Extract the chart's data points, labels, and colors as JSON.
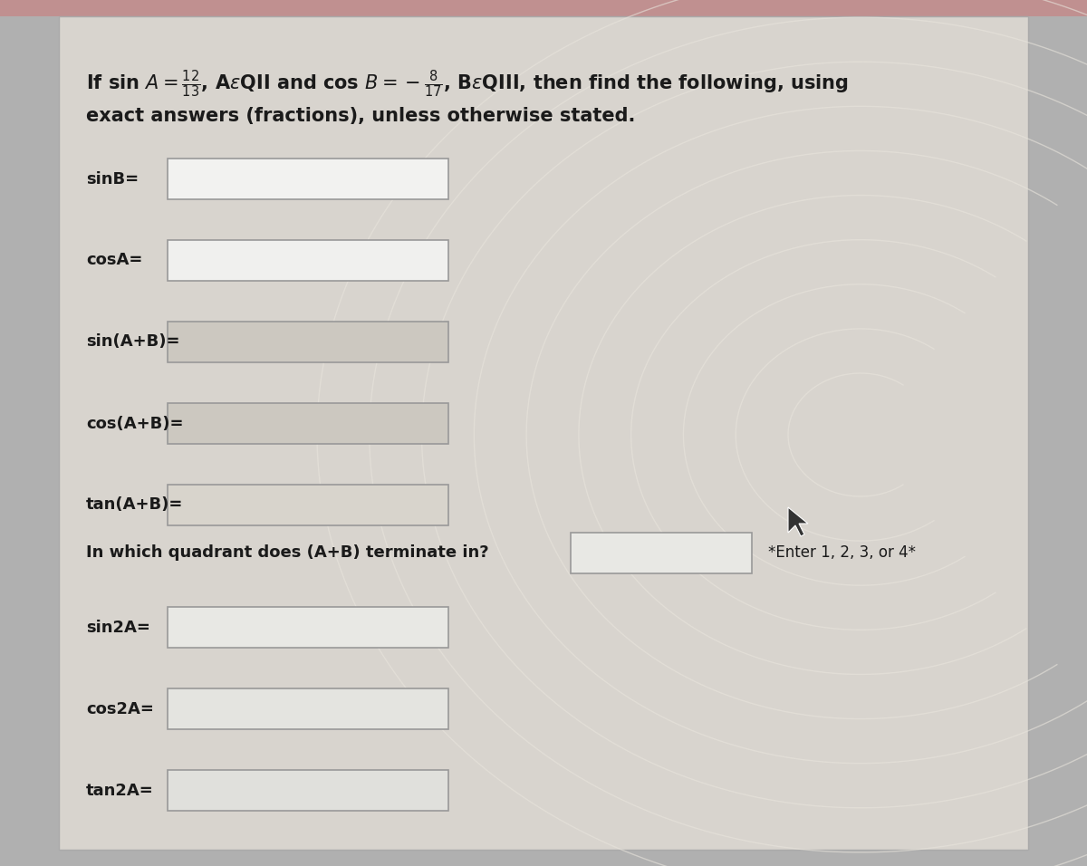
{
  "bg_outer": "#b0b0b0",
  "bg_top_bar": "#c0a0a0",
  "bg_main": "#d8d4ce",
  "box_color_white": "#f0f0ee",
  "box_color_tinted": "#ccc8c0",
  "border_color": "#999999",
  "text_color": "#1a1a1a",
  "arc_color": "#e8e4dc",
  "title_fs": 15,
  "label_fs": 13,
  "note_fs": 12,
  "labels": [
    "sinB=",
    "cosA=",
    "sin(A+B)=",
    "cos(A+B)=",
    "tan(A+B)=",
    "sin2A=",
    "cos2A=",
    "tan2A="
  ],
  "box_colors": [
    "#f2f2f0",
    "#f0f0ee",
    "#ccc8c0",
    "#ccc8c0",
    "#d8d4cc",
    "#e8e8e4",
    "#e4e4e0",
    "#e0e0dc"
  ],
  "quadrant_label": "In which quadrant does (A+B) terminate in?",
  "quadrant_note": "*Enter 1, 2, 3, or 4*"
}
